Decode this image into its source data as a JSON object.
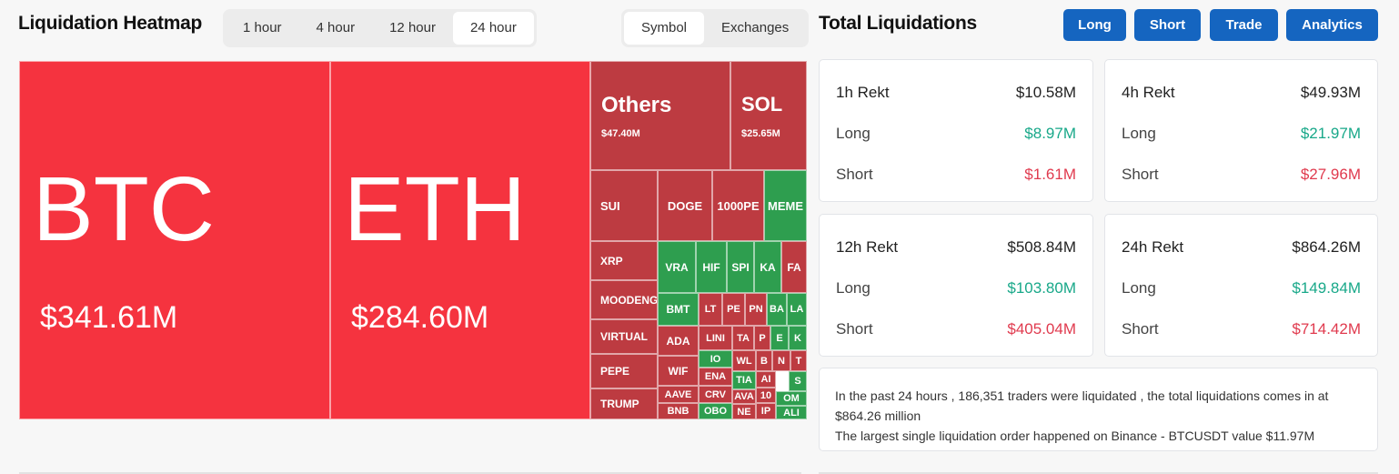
{
  "heatmap": {
    "title": "Liquidation Heatmap",
    "timeframes": [
      "1 hour",
      "4 hour",
      "12 hour",
      "24 hour"
    ],
    "active_timeframe": "24 hour",
    "view_modes": [
      "Symbol",
      "Exchanges"
    ],
    "active_view_mode": "Symbol",
    "tiles": [
      {
        "symbol": "BTC",
        "amount": "$341.61M",
        "color": "#f5333f"
      },
      {
        "symbol": "ETH",
        "amount": "$284.60M",
        "color": "#f5333f"
      },
      {
        "symbol": "Others",
        "amount": "$47.40M",
        "color": "#bd3b41"
      },
      {
        "symbol": "SOL",
        "amount": "$25.65M",
        "color": "#bd3b41"
      },
      {
        "symbol": "SUI",
        "color": "#bd3b41"
      },
      {
        "symbol": "DOGE",
        "color": "#bd3b41"
      },
      {
        "symbol": "1000PE",
        "color": "#bd3b41"
      },
      {
        "symbol": "MEME",
        "color": "#2e9e4f"
      },
      {
        "symbol": "XRP",
        "color": "#bd3b41"
      },
      {
        "symbol": "MOODENG",
        "color": "#bd3b41"
      },
      {
        "symbol": "VIRTUAL",
        "color": "#bd3b41"
      },
      {
        "symbol": "PEPE",
        "color": "#bd3b41"
      },
      {
        "symbol": "TRUMP",
        "color": "#bd3b41"
      },
      {
        "symbol": "VRA",
        "color": "#2e9e4f"
      },
      {
        "symbol": "HIF",
        "color": "#2e9e4f"
      },
      {
        "symbol": "SPI",
        "color": "#2e9e4f"
      },
      {
        "symbol": "KA",
        "color": "#2e9e4f"
      },
      {
        "symbol": "FA",
        "color": "#bd3b41"
      },
      {
        "symbol": "BMT",
        "color": "#2e9e4f"
      },
      {
        "symbol": "LT",
        "color": "#bd3b41"
      },
      {
        "symbol": "PE",
        "color": "#bd3b41"
      },
      {
        "symbol": "PN",
        "color": "#bd3b41"
      },
      {
        "symbol": "BA",
        "color": "#2e9e4f"
      },
      {
        "symbol": "LA",
        "color": "#2e9e4f"
      },
      {
        "symbol": "ADA",
        "color": "#bd3b41"
      },
      {
        "symbol": "LINI",
        "color": "#bd3b41"
      },
      {
        "symbol": "TA",
        "color": "#bd3b41"
      },
      {
        "symbol": "P",
        "color": "#bd3b41"
      },
      {
        "symbol": "E",
        "color": "#2e9e4f"
      },
      {
        "symbol": "K",
        "color": "#2e9e4f"
      },
      {
        "symbol": "WIF",
        "color": "#bd3b41"
      },
      {
        "symbol": "IO",
        "color": "#2e9e4f"
      },
      {
        "symbol": "WL",
        "color": "#bd3b41"
      },
      {
        "symbol": "B",
        "color": "#bd3b41"
      },
      {
        "symbol": "N",
        "color": "#bd3b41"
      },
      {
        "symbol": "T",
        "color": "#bd3b41"
      },
      {
        "symbol": "AAVE",
        "color": "#bd3b41"
      },
      {
        "symbol": "ENA",
        "color": "#bd3b41"
      },
      {
        "symbol": "TIA",
        "color": "#2e9e4f"
      },
      {
        "symbol": "AI",
        "color": "#bd3b41"
      },
      {
        "symbol": "S",
        "color": "#2e9e4f"
      },
      {
        "symbol": "BNB",
        "color": "#bd3b41"
      },
      {
        "symbol": "CRV",
        "color": "#bd3b41"
      },
      {
        "symbol": "AVA",
        "color": "#bd3b41"
      },
      {
        "symbol": "10",
        "color": "#bd3b41"
      },
      {
        "symbol": "OM",
        "color": "#2e9e4f"
      },
      {
        "symbol": "OBO",
        "color": "#2e9e4f"
      },
      {
        "symbol": "NE",
        "color": "#bd3b41"
      },
      {
        "symbol": "IP",
        "color": "#bd3b41"
      },
      {
        "symbol": "ALI",
        "color": "#2e9e4f"
      }
    ]
  },
  "totals": {
    "title": "Total Liquidations",
    "buttons": [
      "Long",
      "Short",
      "Trade",
      "Analytics"
    ],
    "cards": [
      {
        "label": "1h Rekt",
        "total": "$10.58M",
        "long_label": "Long",
        "long": "$8.97M",
        "short_label": "Short",
        "short": "$1.61M"
      },
      {
        "label": "4h Rekt",
        "total": "$49.93M",
        "long_label": "Long",
        "long": "$21.97M",
        "short_label": "Short",
        "short": "$27.96M"
      },
      {
        "label": "12h Rekt",
        "total": "$508.84M",
        "long_label": "Long",
        "long": "$103.80M",
        "short_label": "Short",
        "short": "$405.04M"
      },
      {
        "label": "24h Rekt",
        "total": "$864.26M",
        "long_label": "Long",
        "long": "$149.84M",
        "short_label": "Short",
        "short": "$714.42M"
      }
    ],
    "colors": {
      "long": "#18a889",
      "short": "#e03a4e",
      "button": "#1565c0"
    }
  },
  "summary": {
    "line1": "In the past 24 hours , 186,351 traders were liquidated , the total liquidations comes in at $864.26 million",
    "line2": "The largest single liquidation order happened on Binance - BTCUSDT value $11.97M"
  }
}
